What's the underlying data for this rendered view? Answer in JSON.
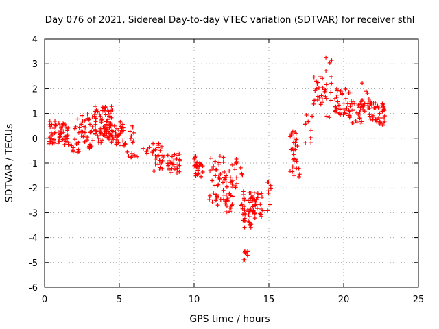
{
  "chart_data": {
    "type": "scatter",
    "title": "Day 076 of 2021, Sidereal Day-to-day VTEC variation (SDTVAR) for receiver sthl",
    "xlabel": "GPS time / hours",
    "ylabel": "SDTVAR / TECUs",
    "xlim": [
      0,
      25
    ],
    "ylim": [
      -6,
      4
    ],
    "xticks": [
      "0",
      "5",
      "10",
      "15",
      "20",
      "25"
    ],
    "yticks": [
      "-6",
      "-5",
      "-4",
      "-3",
      "-2",
      "-1",
      "0",
      "1",
      "2",
      "3",
      "4"
    ],
    "grid": true,
    "marker": "+",
    "color": "#ff0000",
    "clusters": [
      {
        "x": [
          0.3,
          1.6
        ],
        "y": [
          -0.3,
          0.7
        ],
        "n": 60
      },
      {
        "x": [
          1.8,
          2.3
        ],
        "y": [
          -0.6,
          0.8
        ],
        "n": 15
      },
      {
        "x": [
          2.3,
          3.3
        ],
        "y": [
          -0.4,
          1.1
        ],
        "n": 35
      },
      {
        "x": [
          3.3,
          4.6
        ],
        "y": [
          0.1,
          1.3
        ],
        "n": 55
      },
      {
        "x": [
          3.5,
          5.3
        ],
        "y": [
          -0.2,
          0.7
        ],
        "n": 45
      },
      {
        "x": [
          4.6,
          6.0
        ],
        "y": [
          -0.4,
          0.5
        ],
        "n": 25
      },
      {
        "x": [
          5.5,
          6.2
        ],
        "y": [
          -0.8,
          -0.5
        ],
        "n": 8
      },
      {
        "x": [
          6.6,
          7.0
        ],
        "y": [
          -0.6,
          -0.3
        ],
        "n": 5
      },
      {
        "x": [
          7.2,
          8.0
        ],
        "y": [
          -1.4,
          -0.2
        ],
        "n": 30
      },
      {
        "x": [
          8.2,
          9.2
        ],
        "y": [
          -1.4,
          -0.6
        ],
        "n": 30
      },
      {
        "x": [
          10.0,
          10.6
        ],
        "y": [
          -1.6,
          -0.7
        ],
        "n": 25
      },
      {
        "x": [
          11.0,
          12.2
        ],
        "y": [
          -2.7,
          -0.7
        ],
        "n": 45
      },
      {
        "x": [
          12.1,
          12.6
        ],
        "y": [
          -3.2,
          -1.2
        ],
        "n": 25
      },
      {
        "x": [
          12.5,
          13.3
        ],
        "y": [
          -2.8,
          -0.8
        ],
        "n": 20
      },
      {
        "x": [
          13.2,
          13.9
        ],
        "y": [
          -3.6,
          -2.1
        ],
        "n": 35
      },
      {
        "x": [
          13.3,
          13.6
        ],
        "y": [
          -5.0,
          -4.5
        ],
        "n": 8
      },
      {
        "x": [
          13.9,
          14.6
        ],
        "y": [
          -3.3,
          -2.1
        ],
        "n": 30
      },
      {
        "x": [
          14.8,
          15.2
        ],
        "y": [
          -3.3,
          -1.7
        ],
        "n": 8
      },
      {
        "x": [
          16.4,
          17.1
        ],
        "y": [
          -1.6,
          0.4
        ],
        "n": 30
      },
      {
        "x": [
          17.4,
          17.9
        ],
        "y": [
          -0.2,
          1.2
        ],
        "n": 10
      },
      {
        "x": [
          18.0,
          18.8
        ],
        "y": [
          1.3,
          2.5
        ],
        "n": 25
      },
      {
        "x": [
          18.8,
          19.2
        ],
        "y": [
          0.6,
          3.4
        ],
        "n": 12
      },
      {
        "x": [
          19.4,
          20.5
        ],
        "y": [
          0.9,
          2.0
        ],
        "n": 40
      },
      {
        "x": [
          20.3,
          21.2
        ],
        "y": [
          0.6,
          1.5
        ],
        "n": 25
      },
      {
        "x": [
          21.1,
          21.6
        ],
        "y": [
          1.0,
          2.3
        ],
        "n": 12
      },
      {
        "x": [
          21.6,
          22.2
        ],
        "y": [
          0.7,
          1.6
        ],
        "n": 25
      },
      {
        "x": [
          22.2,
          22.8
        ],
        "y": [
          0.5,
          1.4
        ],
        "n": 30
      }
    ]
  }
}
